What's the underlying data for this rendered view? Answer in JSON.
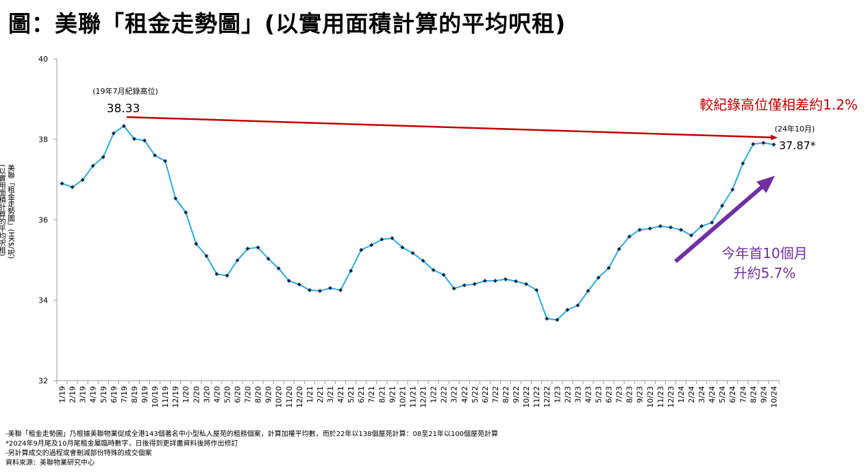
{
  "title": "圖：美聯「租金走勢圖」(以實用面積計算的平均呎租)",
  "chart_data": {
    "type": "line",
    "ylabel_line1": "美聯「租金走勢圖」(HK$/呎)",
    "ylabel_line2": "(以實用面積計算的平均呎租)",
    "ylim": [
      32,
      40
    ],
    "yticks": [
      "32",
      "34",
      "36",
      "38",
      "40"
    ],
    "grid": false,
    "line_color": "#29abe2",
    "marker_color": "#0b2a4a",
    "categories": [
      "1/19",
      "2/19",
      "3/19",
      "4/19",
      "5/19",
      "6/19",
      "7/19",
      "8/19",
      "9/19",
      "10/19",
      "11/19",
      "12/19",
      "1/20",
      "2/20",
      "3/20",
      "4/20",
      "5/20",
      "6/20",
      "7/20",
      "8/20",
      "9/20",
      "10/20",
      "11/20",
      "12/20",
      "1/21",
      "2/21",
      "3/21",
      "4/21",
      "5/21",
      "6/21",
      "7/21",
      "8/21",
      "9/21",
      "10/21",
      "11/21",
      "12/21",
      "1/22",
      "2/22",
      "3/22",
      "4/22",
      "5/22",
      "6/22",
      "7/22",
      "8/22",
      "9/22",
      "10/22",
      "11/22",
      "12/22",
      "1/23",
      "2/23",
      "3/23",
      "4/23",
      "5/23",
      "6/23",
      "7/23",
      "8/23",
      "9/23",
      "10/23",
      "11/23",
      "12/23",
      "1/24",
      "2/24",
      "3/24",
      "4/24",
      "5/24",
      "6/24",
      "7/24",
      "8/24",
      "9/24",
      "10/24"
    ],
    "values": [
      36.9,
      36.81,
      36.99,
      37.34,
      37.56,
      38.15,
      38.33,
      38.01,
      37.97,
      37.6,
      37.46,
      36.53,
      36.18,
      35.4,
      35.1,
      34.65,
      34.61,
      34.99,
      35.28,
      35.31,
      35.03,
      34.79,
      34.48,
      34.39,
      34.25,
      34.23,
      34.3,
      34.25,
      34.73,
      35.25,
      35.37,
      35.51,
      35.54,
      35.31,
      35.17,
      34.98,
      34.75,
      34.63,
      34.29,
      34.37,
      34.4,
      34.48,
      34.48,
      34.52,
      34.47,
      34.4,
      34.25,
      33.54,
      33.51,
      33.76,
      33.87,
      34.23,
      34.56,
      34.8,
      35.27,
      35.58,
      35.75,
      35.78,
      35.84,
      35.81,
      35.75,
      35.61,
      35.84,
      35.93,
      36.35,
      36.75,
      37.4,
      37.88,
      37.91,
      37.87
    ],
    "annotations": {
      "peak_note": "(19年7月紀錄高位)",
      "peak_value": "38.33",
      "latest_note": "(24年10月)",
      "latest_value": "37.87*",
      "red_text": "較紀錄高位僅相差約1.2%",
      "purple_line1": "今年首10個月",
      "purple_line2": "升約5.7%",
      "red_color": "#c00000",
      "purple_color": "#7030a0"
    }
  },
  "notes": [
    "-美聯「租金走勢圖」乃根據美聯物業促成全港143個著名中小型私人屋苑的租務個案，計算加權平均數，而於22年以138個屋苑計算：08至21年以100個屋苑計算",
    "*2024年9月尾及10月尾租金屬臨時數字，日後得到更詳盡資料後將作出修訂",
    "-另計算成交的過程或會刪減部份特殊的成交個案",
    "資料來源：美聯物業研究中心"
  ]
}
